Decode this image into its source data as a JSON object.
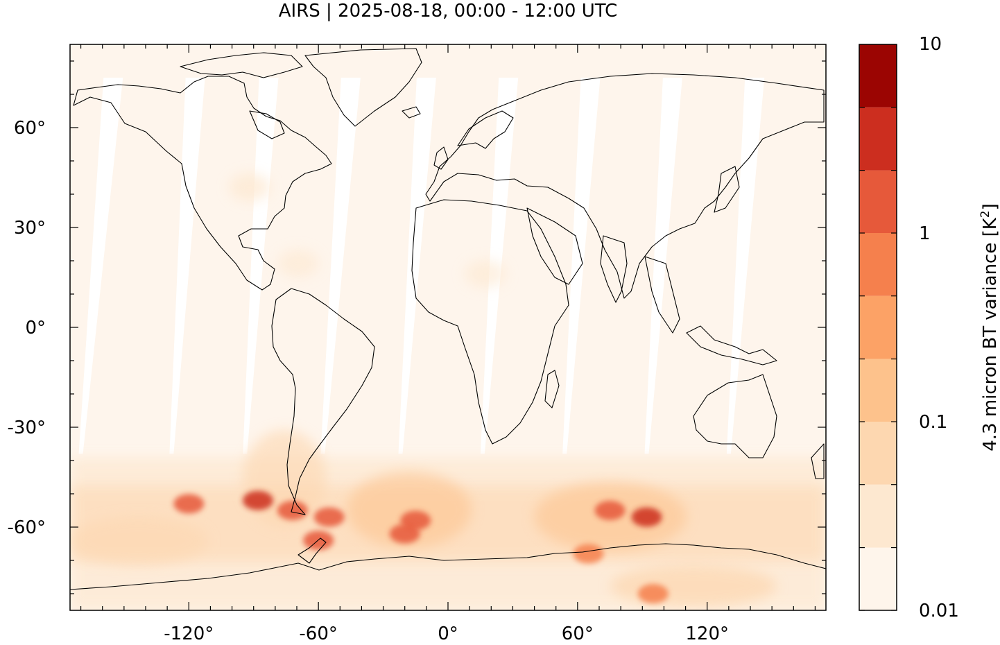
{
  "title": "AIRS | 2025-08-18, 00:00 - 12:00 UTC",
  "map": {
    "projection": "plate-carree",
    "lon_range": [
      -175,
      175
    ],
    "lat_range": [
      -85,
      85
    ],
    "lon_ticks": [
      {
        "value": -120,
        "label": "-120°"
      },
      {
        "value": -60,
        "label": "-60°"
      },
      {
        "value": 0,
        "label": "0°"
      },
      {
        "value": 60,
        "label": "60°"
      },
      {
        "value": 120,
        "label": "120°"
      }
    ],
    "lat_ticks": [
      {
        "value": 60,
        "label": "60°"
      },
      {
        "value": 30,
        "label": "30°"
      },
      {
        "value": 0,
        "label": "0°"
      },
      {
        "value": -30,
        "label": "-30°"
      },
      {
        "value": -60,
        "label": "-60°"
      }
    ],
    "background_color": "#fef5ec",
    "coastline_color": "#000000"
  },
  "colorbar": {
    "label": "4.3 micron BT variance [K",
    "label_superscript": "2",
    "label_suffix": "]",
    "scale": "log",
    "range": [
      0.01,
      10
    ],
    "tick_labels": [
      {
        "value": 10,
        "label": "10"
      },
      {
        "value": 1,
        "label": "1"
      },
      {
        "value": 0.1,
        "label": "0.1"
      },
      {
        "value": 0.01,
        "label": "0.01"
      }
    ],
    "levels": [
      {
        "from": 0.01,
        "to": 0.0215,
        "color": "#fef5eb"
      },
      {
        "from": 0.0215,
        "to": 0.0464,
        "color": "#fde8d0"
      },
      {
        "from": 0.0464,
        "to": 0.1,
        "color": "#fdd7b0"
      },
      {
        "from": 0.1,
        "to": 0.215,
        "color": "#fdc28c"
      },
      {
        "from": 0.215,
        "to": 0.464,
        "color": "#fca266"
      },
      {
        "from": 0.464,
        "to": 1,
        "color": "#f5804d"
      },
      {
        "from": 1,
        "to": 2.15,
        "color": "#e6593a"
      },
      {
        "from": 2.15,
        "to": 4.64,
        "color": "#cc2e1f"
      },
      {
        "from": 4.64,
        "to": 10,
        "color": "#9b0502"
      }
    ]
  },
  "swath_gaps": [
    {
      "lon_top": -155,
      "lon_bottom": -170
    },
    {
      "lon_top": -117,
      "lon_bottom": -128
    },
    {
      "lon_top": -83,
      "lon_bottom": -94
    },
    {
      "lon_top": -45,
      "lon_bottom": -58
    },
    {
      "lon_top": -10,
      "lon_bottom": -22
    },
    {
      "lon_top": 28,
      "lon_bottom": 16
    },
    {
      "lon_top": 66,
      "lon_bottom": 54
    },
    {
      "lon_top": 104,
      "lon_bottom": 92
    },
    {
      "lon_top": 142,
      "lon_bottom": 130
    }
  ],
  "hotspots": [
    {
      "lon": -120,
      "lat": -53,
      "value": 2.0
    },
    {
      "lon": -88,
      "lat": -52,
      "value": 4.0
    },
    {
      "lon": -72,
      "lat": -55,
      "value": 1.2
    },
    {
      "lon": -55,
      "lat": -57,
      "value": 1.5
    },
    {
      "lon": -60,
      "lat": -64,
      "value": 1.2
    },
    {
      "lon": -15,
      "lat": -58,
      "value": 1.5
    },
    {
      "lon": -20,
      "lat": -62,
      "value": 1.0
    },
    {
      "lon": 75,
      "lat": -55,
      "value": 1.2
    },
    {
      "lon": 92,
      "lat": -57,
      "value": 2.5
    },
    {
      "lon": 65,
      "lat": -68,
      "value": 0.6
    },
    {
      "lon": 95,
      "lat": -80,
      "value": 0.7
    }
  ]
}
